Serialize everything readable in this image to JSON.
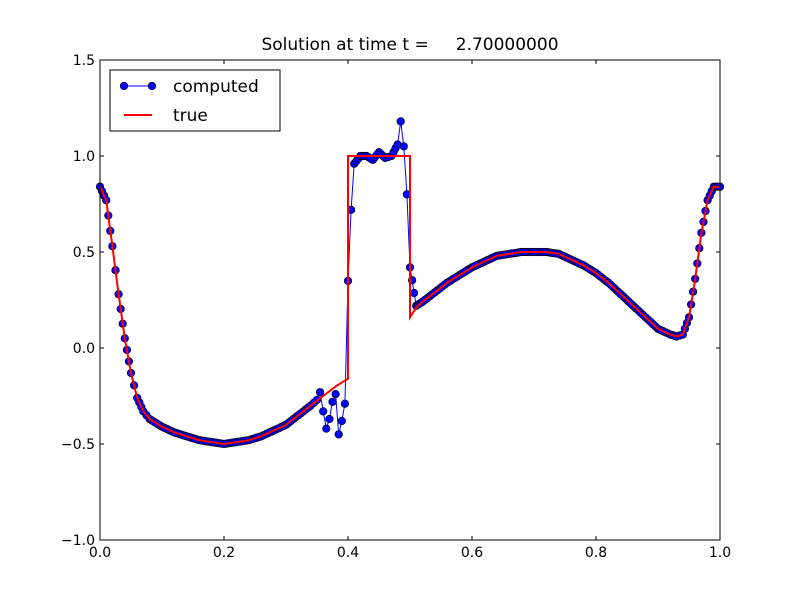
{
  "chart_data": {
    "type": "line",
    "title": "Solution at time t =     2.70000000",
    "xlabel": "",
    "ylabel": "",
    "xlim": [
      0.0,
      1.0
    ],
    "ylim": [
      -1.0,
      1.5
    ],
    "xticks": [
      "0.0",
      "0.2",
      "0.4",
      "0.6",
      "0.8",
      "1.0"
    ],
    "yticks": [
      "−1.0",
      "−0.5",
      "0.0",
      "0.5",
      "1.0",
      "1.5"
    ],
    "xtick_values": [
      0.0,
      0.2,
      0.4,
      0.6,
      0.8,
      1.0
    ],
    "ytick_values": [
      -1.0,
      -0.5,
      0.0,
      0.5,
      1.0,
      1.5
    ],
    "grid": false,
    "legend": {
      "position": "upper-left",
      "entries": [
        "computed",
        "true"
      ]
    },
    "series": [
      {
        "name": "computed",
        "color": "#0000ff",
        "marker": "circle",
        "x": [
          0.0,
          0.01,
          0.02,
          0.03,
          0.04,
          0.05,
          0.06,
          0.07,
          0.08,
          0.1,
          0.12,
          0.14,
          0.16,
          0.18,
          0.2,
          0.22,
          0.24,
          0.26,
          0.28,
          0.3,
          0.32,
          0.34,
          0.35,
          0.355,
          0.36,
          0.365,
          0.37,
          0.375,
          0.38,
          0.385,
          0.39,
          0.395,
          0.4,
          0.405,
          0.41,
          0.42,
          0.43,
          0.44,
          0.45,
          0.46,
          0.47,
          0.48,
          0.485,
          0.49,
          0.495,
          0.5,
          0.51,
          0.52,
          0.54,
          0.56,
          0.58,
          0.6,
          0.62,
          0.64,
          0.66,
          0.68,
          0.7,
          0.72,
          0.74,
          0.76,
          0.78,
          0.8,
          0.82,
          0.84,
          0.86,
          0.88,
          0.9,
          0.92,
          0.93,
          0.94,
          0.95,
          0.96,
          0.97,
          0.98,
          0.99,
          1.0
        ],
        "y": [
          0.84,
          0.77,
          0.53,
          0.28,
          0.05,
          -0.13,
          -0.26,
          -0.33,
          -0.37,
          -0.41,
          -0.44,
          -0.46,
          -0.48,
          -0.49,
          -0.5,
          -0.49,
          -0.48,
          -0.46,
          -0.43,
          -0.4,
          -0.35,
          -0.3,
          -0.27,
          -0.23,
          -0.33,
          -0.42,
          -0.37,
          -0.28,
          -0.24,
          -0.45,
          -0.38,
          -0.29,
          0.35,
          0.72,
          0.96,
          1.0,
          1.0,
          0.98,
          1.02,
          0.99,
          1.0,
          1.06,
          1.18,
          1.05,
          0.8,
          0.42,
          0.22,
          0.24,
          0.29,
          0.34,
          0.38,
          0.42,
          0.45,
          0.48,
          0.49,
          0.5,
          0.5,
          0.5,
          0.49,
          0.46,
          0.43,
          0.39,
          0.34,
          0.28,
          0.22,
          0.16,
          0.1,
          0.07,
          0.06,
          0.07,
          0.16,
          0.36,
          0.6,
          0.77,
          0.84,
          0.84
        ]
      },
      {
        "name": "true",
        "color": "#ff0000",
        "marker": "none",
        "x": [
          0.0,
          0.01,
          0.02,
          0.03,
          0.04,
          0.05,
          0.06,
          0.07,
          0.08,
          0.1,
          0.12,
          0.14,
          0.16,
          0.18,
          0.2,
          0.22,
          0.24,
          0.26,
          0.28,
          0.3,
          0.32,
          0.34,
          0.36,
          0.38,
          0.4,
          0.4,
          0.5,
          0.5,
          0.51,
          0.52,
          0.54,
          0.56,
          0.58,
          0.6,
          0.62,
          0.64,
          0.66,
          0.68,
          0.7,
          0.72,
          0.74,
          0.76,
          0.78,
          0.8,
          0.82,
          0.84,
          0.86,
          0.88,
          0.9,
          0.92,
          0.93,
          0.94,
          0.95,
          0.96,
          0.97,
          0.98,
          0.99,
          1.0
        ],
        "y": [
          0.84,
          0.77,
          0.53,
          0.28,
          0.05,
          -0.13,
          -0.26,
          -0.33,
          -0.37,
          -0.41,
          -0.44,
          -0.46,
          -0.48,
          -0.49,
          -0.5,
          -0.49,
          -0.48,
          -0.46,
          -0.43,
          -0.4,
          -0.35,
          -0.3,
          -0.25,
          -0.2,
          -0.16,
          1.0,
          1.0,
          0.16,
          0.21,
          0.24,
          0.29,
          0.34,
          0.38,
          0.42,
          0.45,
          0.48,
          0.49,
          0.5,
          0.5,
          0.5,
          0.49,
          0.46,
          0.43,
          0.39,
          0.34,
          0.28,
          0.22,
          0.16,
          0.1,
          0.07,
          0.06,
          0.07,
          0.16,
          0.36,
          0.6,
          0.77,
          0.84,
          0.84
        ]
      }
    ]
  }
}
